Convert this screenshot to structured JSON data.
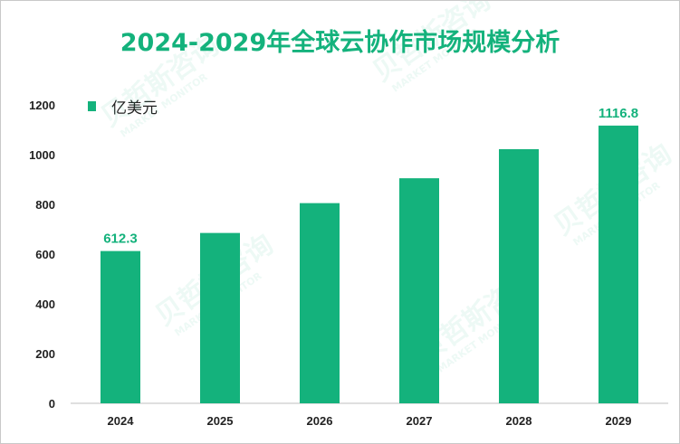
{
  "title": "2024-2029年全球云协作市场规模分析",
  "legend": {
    "label": "亿美元",
    "color": "#14b27c"
  },
  "chart_data": {
    "type": "bar",
    "title": "2024-2029年全球云协作市场规模分析",
    "categories": [
      "2024",
      "2025",
      "2026",
      "2027",
      "2028",
      "2029"
    ],
    "series": [
      {
        "name": "亿美元",
        "values": [
          612.3,
          685,
          805,
          905,
          1022,
          1116.8
        ],
        "color": "#14b27c"
      }
    ],
    "data_labels": [
      {
        "category": "2024",
        "text": "612.3"
      },
      {
        "category": "2029",
        "text": "1116.8"
      }
    ],
    "xlabel": "",
    "ylabel": "",
    "ylim": [
      0,
      1200
    ],
    "yticks": [
      0,
      200,
      400,
      600,
      800,
      1000,
      1200
    ],
    "grid": false,
    "legend_position": "top-left"
  },
  "watermark": {
    "brand": "贝哲斯咨询",
    "tagline": "MARKET MONITOR"
  }
}
